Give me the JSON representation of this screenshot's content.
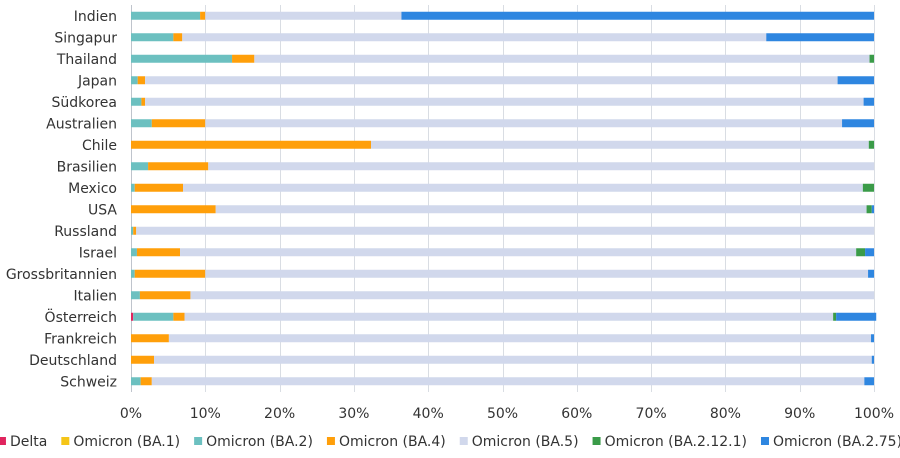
{
  "chart_data": {
    "type": "bar",
    "orientation": "horizontal",
    "stacked": "percent",
    "categories": [
      "Indien",
      "Singapur",
      "Thailand",
      "Japan",
      "Südkorea",
      "Australien",
      "Chile",
      "Brasilien",
      "Mexico",
      "USA",
      "Russland",
      "Israel",
      "Grossbritannien",
      "Italien",
      "Österreich",
      "Frankreich",
      "Deutschland",
      "Schweiz"
    ],
    "xlim": [
      0,
      100
    ],
    "xticks": [
      "0%",
      "10%",
      "20%",
      "30%",
      "40%",
      "50%",
      "60%",
      "70%",
      "80%",
      "90%",
      "100%"
    ],
    "grid": "vertical",
    "legend_position": "bottom",
    "series": [
      {
        "name": "Delta",
        "color": "#e0245e",
        "values": [
          0,
          0,
          0,
          0,
          0,
          0,
          0,
          0,
          0,
          0,
          0,
          0,
          0,
          0,
          0.3,
          0,
          0,
          0
        ]
      },
      {
        "name": "Omicron (BA.1)",
        "color": "#f5c518",
        "values": [
          0,
          0,
          0,
          0,
          0,
          0,
          0,
          0,
          0,
          0,
          0,
          0,
          0,
          0,
          0,
          0,
          0,
          0
        ]
      },
      {
        "name": "Omicron (BA.2)",
        "color": "#6cc0c0",
        "values": [
          9.3,
          5.7,
          13.6,
          0.9,
          1.4,
          2.8,
          0,
          2.3,
          0.5,
          0,
          0.3,
          0.8,
          0.5,
          1.2,
          5.4,
          0,
          0,
          1.3
        ]
      },
      {
        "name": "Omicron (BA.4)",
        "color": "#ff9f0a",
        "values": [
          0.7,
          1.2,
          3.0,
          1.0,
          0.5,
          7.2,
          32.3,
          8.1,
          6.5,
          11.4,
          0.4,
          5.8,
          9.5,
          6.8,
          1.5,
          5.1,
          3.1,
          1.5
        ]
      },
      {
        "name": "Omicron (BA.5)",
        "color": "#d1d8ec",
        "values": [
          26.4,
          78.6,
          82.8,
          93.2,
          96.7,
          85.7,
          67.0,
          89.6,
          91.5,
          87.6,
          99.3,
          91.0,
          89.2,
          92.0,
          87.3,
          94.5,
          96.6,
          95.9
        ]
      },
      {
        "name": "Omicron (BA.2.12.1)",
        "color": "#3a9b48",
        "values": [
          0,
          0,
          0.6,
          0,
          0,
          0,
          0.7,
          0,
          1.5,
          0.7,
          0,
          1.2,
          0,
          0,
          0.4,
          0,
          0,
          0
        ]
      },
      {
        "name": "Omicron (BA.2.75)",
        "color": "#2e86e0",
        "values": [
          63.6,
          14.5,
          0,
          4.9,
          1.4,
          4.3,
          0,
          0,
          0,
          0.3,
          0,
          1.2,
          0.8,
          0,
          5.4,
          0.4,
          0.3,
          1.3
        ]
      }
    ]
  }
}
